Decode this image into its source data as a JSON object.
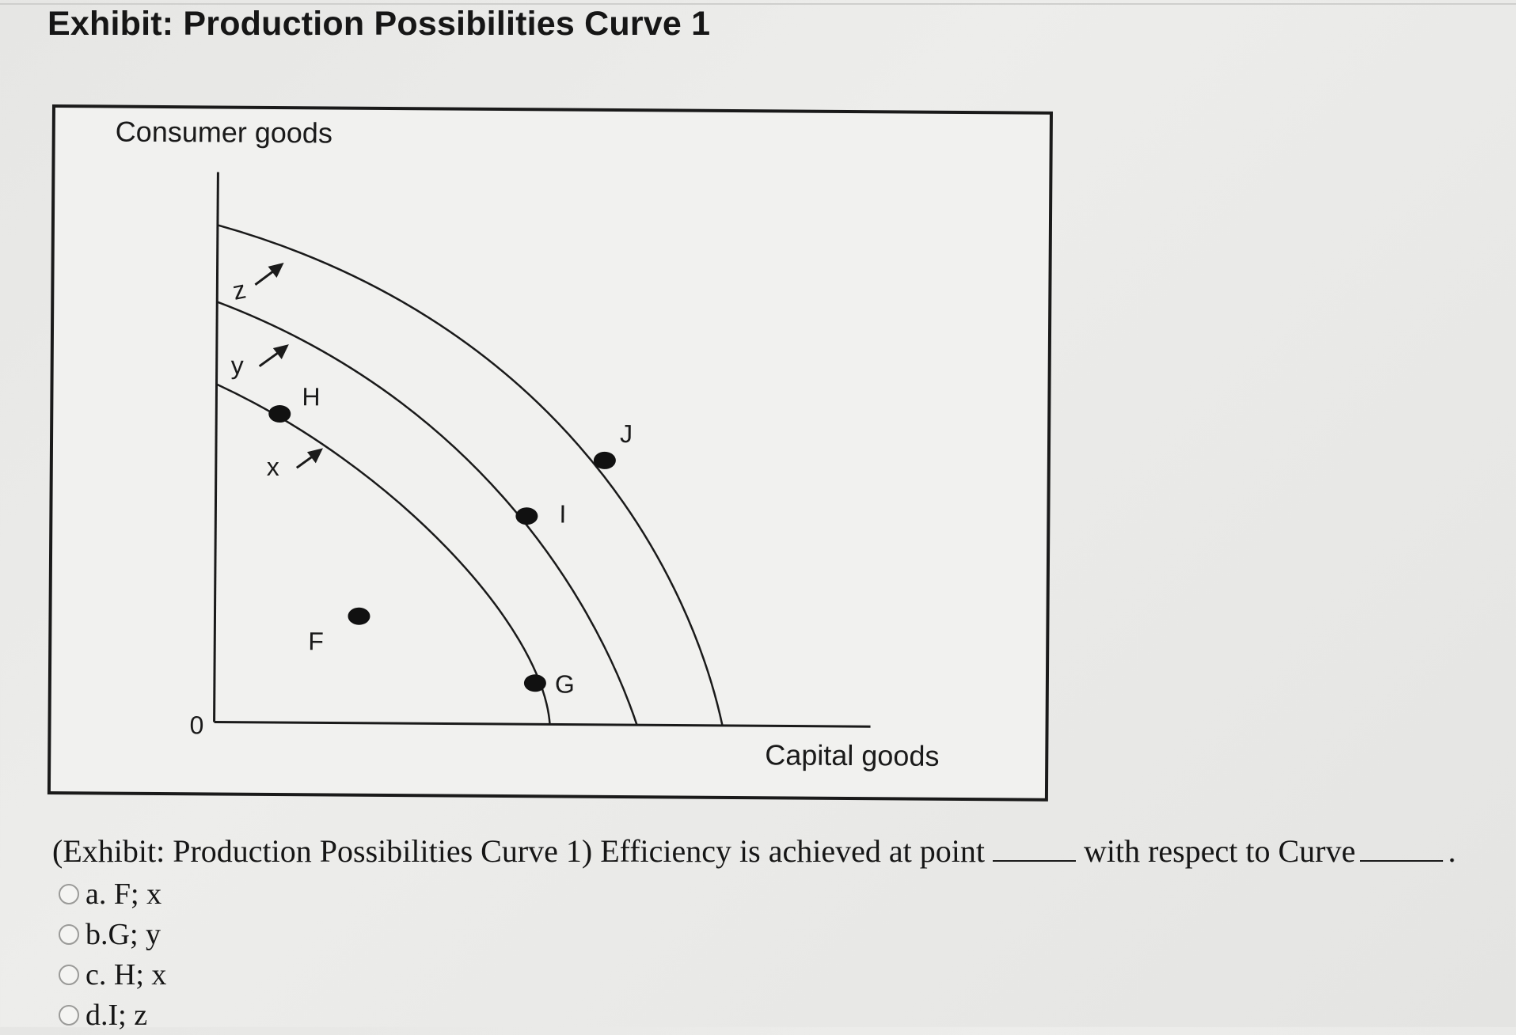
{
  "header": {
    "title": "Exhibit: Production Possibilities Curve 1"
  },
  "figure": {
    "y_axis_label": "Consumer goods",
    "x_axis_label": "Capital goods",
    "origin_label": "0",
    "curves": [
      {
        "label": "x"
      },
      {
        "label": "y"
      },
      {
        "label": "z"
      }
    ],
    "points": [
      {
        "label": "H"
      },
      {
        "label": "F"
      },
      {
        "label": "G"
      },
      {
        "label": "I"
      },
      {
        "label": "J"
      }
    ],
    "line_color": "#1a1a1a"
  },
  "question": {
    "text_before": "(Exhibit: Production Possibilities Curve 1) Efficiency is achieved at point",
    "text_middle": "with respect to Curve",
    "text_end": "."
  },
  "options": [
    {
      "letter": "a.",
      "text": "F; x"
    },
    {
      "letter": "b.",
      "text": "G; y"
    },
    {
      "letter": "c.",
      "text": "H; x"
    },
    {
      "letter": "d.",
      "text": "I; z"
    }
  ]
}
